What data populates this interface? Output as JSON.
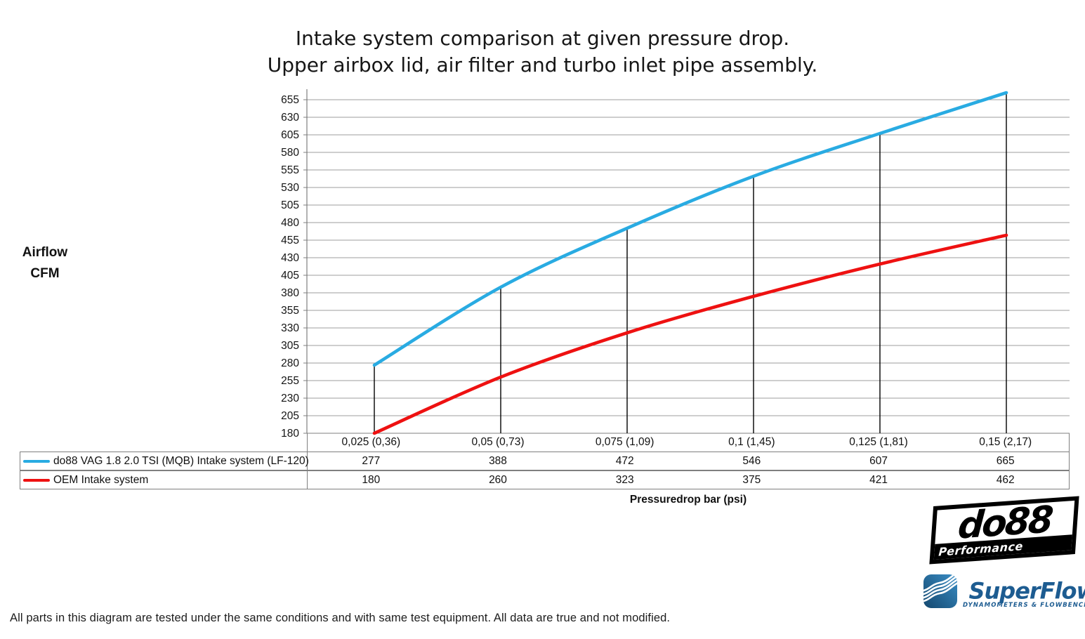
{
  "page": {
    "title_line1": "Intake system comparison at given pressure drop.",
    "title_line2": "Upper airbox lid, air filter and turbo inlet pipe assembly.",
    "y_axis_label_line1": "Airflow",
    "y_axis_label_line2": "CFM",
    "x_axis_label": "Pressuredrop bar (psi)",
    "disclaimer": "All parts in this diagram are tested under the same conditions and with same test equipment. All data are true and not modified."
  },
  "logos": {
    "do88_text": "do88",
    "do88_sub": "Performance",
    "superflow_text": "SuperFlow",
    "superflow_tm": "’",
    "superflow_sub": "DYNAMOMETERS & FLOWBENCHES"
  },
  "colors": {
    "series_do88": "#29abe2",
    "series_oem": "#ee1111",
    "gridline": "#9c9c9c",
    "axis": "#7f7f7f",
    "drop_line": "#000000",
    "superflow_blue": "#1d5c91"
  },
  "chart_data": {
    "type": "line",
    "title": "Intake system comparison at given pressure drop. Upper airbox lid, air filter and turbo inlet pipe assembly.",
    "xlabel": "Pressuredrop bar (psi)",
    "ylabel": "Airflow CFM",
    "categories": [
      "0,025 (0,36)",
      "0,05 (0,73)",
      "0,075 (1,09)",
      "0,1 (1,45)",
      "0,125 (1,81)",
      "0,15 (2,17)"
    ],
    "series": [
      {
        "name": "do88 VAG 1.8 2.0 TSI (MQB) Intake system (LF-120)",
        "color": "#29abe2",
        "values": [
          277,
          388,
          472,
          546,
          607,
          665
        ]
      },
      {
        "name": "OEM Intake system",
        "color": "#ee1111",
        "values": [
          180,
          260,
          323,
          375,
          421,
          462
        ]
      }
    ],
    "ylim": [
      180,
      655
    ],
    "ytick_step": 25,
    "grid": "horizontal gridlines at every 25 CFM",
    "legend_position": "bottom table with per-category values",
    "annotations": "vertical black drop lines from the do88 series down to the x-axis at each category"
  }
}
